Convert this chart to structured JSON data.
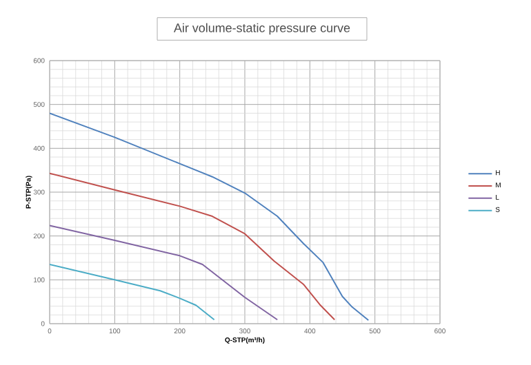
{
  "chart_data": {
    "type": "line",
    "title": "Air volume-static pressure curve",
    "xlabel": "Q-STP(m³/h)",
    "ylabel": "P-STP(Pa)",
    "xlim": [
      0,
      600
    ],
    "ylim": [
      0,
      600
    ],
    "xticks": [
      0,
      100,
      200,
      300,
      400,
      500,
      600
    ],
    "yticks": [
      0,
      100,
      200,
      300,
      400,
      500,
      600
    ],
    "grid": true,
    "legend": "right",
    "marker": "none",
    "series": [
      {
        "name": "H",
        "color": "#4f81bd",
        "x": [
          0,
          100,
          200,
          250,
          300,
          350,
          390,
          420,
          450,
          465,
          490
        ],
        "values": [
          480,
          425,
          365,
          335,
          298,
          245,
          183,
          140,
          62,
          38,
          8
        ]
      },
      {
        "name": "M",
        "color": "#c0504d",
        "x": [
          0,
          100,
          200,
          250,
          300,
          345,
          390,
          415,
          438
        ],
        "values": [
          343,
          305,
          268,
          245,
          205,
          143,
          90,
          44,
          9
        ]
      },
      {
        "name": "L",
        "color": "#8064a2",
        "x": [
          0,
          100,
          200,
          235,
          300,
          350
        ],
        "values": [
          224,
          190,
          155,
          135,
          60,
          9
        ]
      },
      {
        "name": "S",
        "color": "#4bacc6",
        "x": [
          0,
          100,
          170,
          200,
          225,
          253
        ],
        "values": [
          135,
          100,
          75,
          58,
          42,
          9
        ]
      }
    ]
  }
}
